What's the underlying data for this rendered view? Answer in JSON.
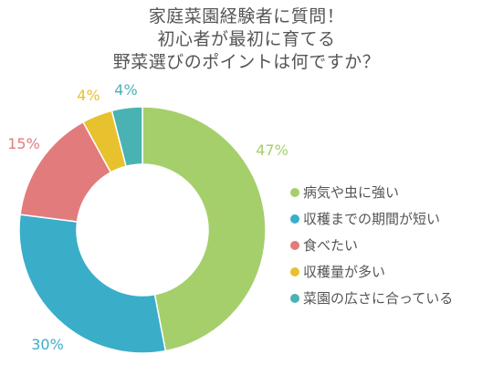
{
  "title_lines": [
    "家庭菜園経験者に質問！",
    "初心者が最初に育てる",
    "野菜選びのポイントは何ですか？"
  ],
  "chart_data": {
    "type": "pie",
    "variant": "donut",
    "title": "家庭菜園経験者に質問！ 初心者が最初に育てる 野菜選びのポイントは何ですか？",
    "categories": [
      "病気や虫に強い",
      "収穫までの期間が短い",
      "食べたい",
      "収穫量が多い",
      "菜園の広さに合っている"
    ],
    "values": [
      47,
      30,
      15,
      4,
      4
    ],
    "labels": [
      "47%",
      "30%",
      "15%",
      "4%",
      "4%"
    ],
    "colors": [
      "#a5cf6b",
      "#3aadc9",
      "#e27c7c",
      "#e8c12e",
      "#49b2b3"
    ],
    "legend_position": "right"
  }
}
